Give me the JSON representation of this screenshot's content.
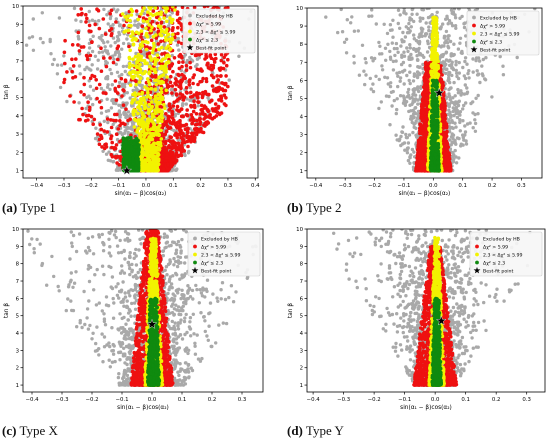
{
  "colors": {
    "excluded": "#a9a9a9",
    "delta_red": "#ee1111",
    "delta_yellow": "#f2f200",
    "delta_green": "#0f8a0f",
    "bestfit": "#000000",
    "legend_bg": "#f6f6f6",
    "legend_border": "#cfcfcf"
  },
  "legend_items": [
    {
      "label": "Excluded by HB",
      "color_key": "excluded",
      "marker": "circle"
    },
    {
      "label": "Δχ² > 5.99",
      "color_key": "delta_red",
      "marker": "circle"
    },
    {
      "label": "2.3 < Δχ² ≤ 5.99",
      "color_key": "delta_yellow",
      "marker": "circle"
    },
    {
      "label": "Δχ² ≤ 2.3",
      "color_key": "delta_green",
      "marker": "circle"
    },
    {
      "label": "Best-fit point",
      "color_key": "bestfit",
      "marker": "star"
    }
  ],
  "chart_data": [
    {
      "type": "scatter",
      "caption_letter": "(a)",
      "caption_text": "Type 1",
      "xlabel": "sin(α₁ − β)cos(α₂)",
      "ylabel": "tan β",
      "xlim": [
        -0.45,
        0.41
      ],
      "ylim": [
        0.6,
        10
      ],
      "xticks": [
        -0.4,
        -0.3,
        -0.2,
        -0.1,
        0.0,
        0.1,
        0.2,
        0.3,
        0.4
      ],
      "xtick_labels": [
        "−0.4",
        "−0.3",
        "−0.2",
        "−0.1",
        "0.0",
        "0.1",
        "0.2",
        "0.3",
        "0.4"
      ],
      "yticks": [
        1,
        2,
        3,
        4,
        5,
        6,
        7,
        8,
        9,
        10
      ],
      "grey_halfwidth": [
        0.1,
        0.5
      ],
      "red_halfwidth": [
        0.08,
        0.3
      ],
      "yellow_halfwidth": [
        0.035,
        0.1
      ],
      "green_halfwidth": [
        0.028,
        0.04
      ],
      "green_ymax": 2.8,
      "red_ymax": 10,
      "best_fit": {
        "x": -0.07,
        "y": 1.0
      },
      "legend_position": "top-right"
    },
    {
      "type": "scatter",
      "caption_letter": "(b)",
      "caption_text": "Type 2",
      "xlabel": "sin(α₁ − β)cos(α₂)",
      "ylabel": "tan β",
      "xlim": [
        -0.43,
        0.37
      ],
      "ylim": [
        0.6,
        10
      ],
      "xticks": [
        -0.4,
        -0.3,
        -0.2,
        -0.1,
        0.0,
        0.1,
        0.2,
        0.3
      ],
      "xtick_labels": [
        "−0.4",
        "−0.3",
        "−0.2",
        "−0.1",
        "0.0",
        "0.1",
        "0.2",
        "0.3"
      ],
      "yticks": [
        1,
        2,
        3,
        4,
        5,
        6,
        7,
        8,
        9,
        10
      ],
      "grey_halfwidth": [
        0.06,
        0.35
      ],
      "red_halfwidth": [
        0.06,
        0.01
      ],
      "yellow_halfwidth": [
        0.025,
        0.005
      ],
      "green_halfwidth": [
        0.015,
        0.003
      ],
      "green_ymax": 6,
      "red_ymax": 7,
      "best_fit": {
        "x": 0.02,
        "y": 5.3
      },
      "legend_position": "top-right"
    },
    {
      "type": "scatter",
      "caption_letter": "(c)",
      "caption_text": "Type X",
      "xlabel": "sin(α₁ − β)cos(α₂)",
      "ylabel": "tan β",
      "xlim": [
        -0.43,
        0.37
      ],
      "ylim": [
        0.6,
        10
      ],
      "xticks": [
        -0.4,
        -0.3,
        -0.2,
        -0.1,
        0.0,
        0.1,
        0.2,
        0.3
      ],
      "xtick_labels": [
        "−0.4",
        "−0.3",
        "−0.2",
        "−0.1",
        "0.0",
        "0.1",
        "0.2",
        "0.3"
      ],
      "yticks": [
        1,
        2,
        3,
        4,
        5,
        6,
        7,
        8,
        9,
        10
      ],
      "grey_halfwidth": [
        0.1,
        0.45
      ],
      "red_halfwidth": [
        0.07,
        0.02
      ],
      "yellow_halfwidth": [
        0.03,
        0.008
      ],
      "green_halfwidth": [
        0.02,
        0.005
      ],
      "green_ymax": 6,
      "red_ymax": 10,
      "best_fit": {
        "x": 0.0,
        "y": 4.5
      },
      "legend_position": "top-right"
    },
    {
      "type": "scatter",
      "caption_letter": "(d)",
      "caption_text": "Type Y",
      "xlabel": "sin(α₁ − β)cos(α₂)",
      "ylabel": "tan β",
      "xlim": [
        -0.42,
        0.36
      ],
      "ylim": [
        0.6,
        10
      ],
      "xticks": [
        -0.4,
        -0.3,
        -0.2,
        -0.1,
        0.0,
        0.1,
        0.2,
        0.3
      ],
      "xtick_labels": [
        "−0.4",
        "−0.3",
        "−0.2",
        "−0.1",
        "0.0",
        "0.1",
        "0.2",
        "0.3"
      ],
      "yticks": [
        1,
        2,
        3,
        4,
        5,
        6,
        7,
        8,
        9,
        10
      ],
      "grey_halfwidth": [
        0.06,
        0.35
      ],
      "red_halfwidth": [
        0.07,
        0.01
      ],
      "yellow_halfwidth": [
        0.025,
        0.005
      ],
      "green_halfwidth": [
        0.015,
        0.003
      ],
      "green_ymax": 6,
      "red_ymax": 9,
      "best_fit": {
        "x": 0.02,
        "y": 4.7
      },
      "legend_position": "top-right"
    }
  ]
}
